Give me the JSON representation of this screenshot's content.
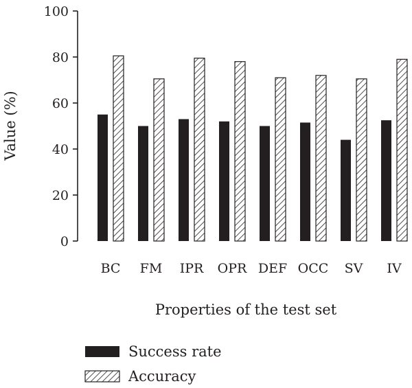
{
  "chart_data": {
    "type": "bar",
    "title": "",
    "xlabel": "Properties of the test set",
    "ylabel": "Value (%)",
    "categories": [
      "BC",
      "FM",
      "IPR",
      "OPR",
      "DEF",
      "OCC",
      "SV",
      "IV"
    ],
    "series": [
      {
        "name": "Success rate",
        "values": [
          55,
          50,
          53,
          52,
          50,
          51.5,
          44,
          52.5
        ],
        "fill": "solid",
        "color": "#231f20"
      },
      {
        "name": "Accuracy",
        "values": [
          80.5,
          70.5,
          79.5,
          78,
          71,
          72,
          70.5,
          79
        ],
        "fill": "hatched",
        "color": "#231f20"
      }
    ],
    "ylim": [
      0,
      100
    ],
    "yticks": [
      "0",
      "20",
      "40",
      "60",
      "80",
      "100"
    ],
    "grid": false,
    "legend_position": "bottom-left"
  }
}
